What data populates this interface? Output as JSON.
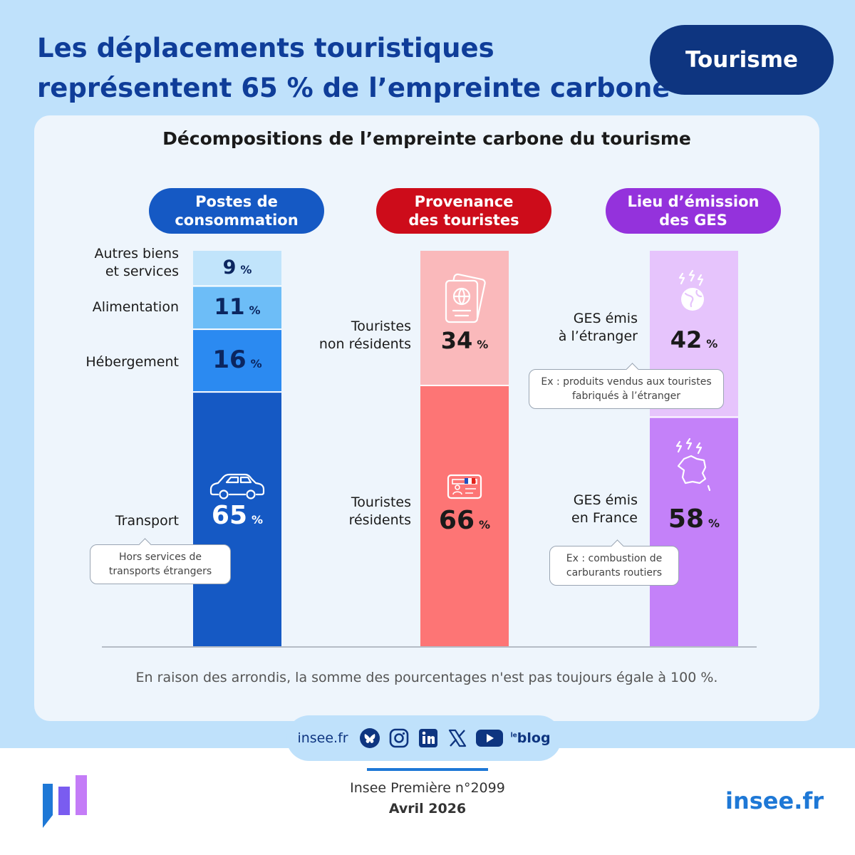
{
  "headline": {
    "line1": "Les déplacements touristiques",
    "line2": "représentent 65 % de l’empreinte carbone"
  },
  "topic": "Tourisme",
  "card_title": "Décompositions de l’empreinte carbone du tourisme",
  "colors": {
    "postes": [
      "#c1e4fb",
      "#6dbdf7",
      "#2b8af1",
      "#1559c4"
    ],
    "provenance": [
      "#fab9bb",
      "#fd7575"
    ],
    "lieu": [
      "#e6c4fc",
      "#c481f9"
    ],
    "pill_postes": "#1559c4",
    "pill_provenance": "#cd0c1a",
    "pill_lieu": "#9432dc",
    "headline": "#0f3d99",
    "topic_pill": "#0e3580"
  },
  "chart_data": [
    {
      "type": "bar",
      "stacked": true,
      "title": "Postes de consommation",
      "title_lines": [
        "Postes de",
        "consommation"
      ],
      "categories": [
        "Autres biens et services",
        "Alimentation",
        "Hébergement",
        "Transport"
      ],
      "category_lines": [
        [
          "Autres biens",
          "et services"
        ],
        [
          "Alimentation"
        ],
        [
          "Hébergement"
        ],
        [
          "Transport"
        ]
      ],
      "values": [
        9,
        11,
        16,
        65
      ],
      "value_labels": [
        "9",
        "11",
        "16",
        "65"
      ],
      "unit": "%",
      "note": [
        "Hors services de",
        "transports étrangers"
      ]
    },
    {
      "type": "bar",
      "stacked": true,
      "title": "Provenance des touristes",
      "title_lines": [
        "Provenance",
        "des touristes"
      ],
      "categories": [
        "Touristes non résidents",
        "Touristes résidents"
      ],
      "category_lines": [
        [
          "Touristes",
          "non résidents"
        ],
        [
          "Touristes",
          "résidents"
        ]
      ],
      "values": [
        34,
        66
      ],
      "value_labels": [
        "34",
        "66"
      ],
      "unit": "%"
    },
    {
      "type": "bar",
      "stacked": true,
      "title": "Lieu d’émission des GES",
      "title_lines": [
        "Lieu d’émission",
        "des GES"
      ],
      "categories": [
        "GES émis à l’étranger",
        "GES émis en France"
      ],
      "category_lines": [
        [
          "GES émis",
          "à l’étranger"
        ],
        [
          "GES émis",
          "en France"
        ]
      ],
      "values": [
        42,
        58
      ],
      "value_labels": [
        "42",
        "58"
      ],
      "unit": "%",
      "notes": [
        [
          "Ex : produits vendus aux touristes",
          "fabriqués à l’étranger"
        ],
        [
          "Ex : combustion de",
          "carburants routiers"
        ]
      ]
    }
  ],
  "footnote": "En raison des arrondis, la somme des pourcentages n'est pas toujours égale à 100 %.",
  "social": {
    "site": "insee.fr",
    "icons": [
      "bluesky-icon",
      "instagram-icon",
      "linkedin-icon",
      "x-icon",
      "youtube-icon"
    ],
    "blog_label": "blog",
    "blog_prefix": "le"
  },
  "publication": {
    "line1": "Insee Première n°2099",
    "line2": "Avril 2026"
  },
  "brand": "insee.fr"
}
